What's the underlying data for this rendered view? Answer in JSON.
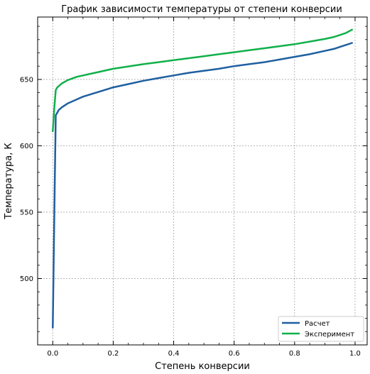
{
  "chart_data": {
    "type": "line",
    "title": "График зависимости температуры от степени конверсии",
    "xlabel": "Степень конверсии",
    "ylabel": "Температура, К",
    "xlim": [
      -0.05,
      1.04
    ],
    "ylim": [
      450,
      697
    ],
    "x_ticks": [
      0.0,
      0.2,
      0.4,
      0.6,
      0.8,
      1.0
    ],
    "x_tick_labels": [
      "0.0",
      "0.2",
      "0.4",
      "0.6",
      "0.8",
      "1.0"
    ],
    "y_ticks": [
      500,
      550,
      600,
      650
    ],
    "y_tick_labels": [
      "500",
      "550",
      "600",
      "650"
    ],
    "grid": true,
    "legend_position": "bottom-right",
    "series": [
      {
        "name": "Расчет",
        "color": "#1f5fa0",
        "x": [
          0.0,
          0.005,
          0.01,
          0.015,
          0.02,
          0.03,
          0.05,
          0.08,
          0.1,
          0.15,
          0.2,
          0.25,
          0.3,
          0.35,
          0.4,
          0.45,
          0.5,
          0.55,
          0.6,
          0.65,
          0.7,
          0.75,
          0.8,
          0.85,
          0.9,
          0.93,
          0.95,
          0.97,
          0.99
        ],
        "y": [
          463,
          545,
          623,
          625,
          627,
          629,
          632,
          635,
          637,
          640.5,
          644,
          646.5,
          649,
          651,
          653,
          655,
          656.5,
          658,
          660,
          661.5,
          663,
          665,
          667,
          669,
          671.5,
          673,
          674.5,
          676,
          677.5
        ]
      },
      {
        "name": "Эксперимент",
        "color": "#11b04a",
        "x": [
          0.0,
          0.005,
          0.01,
          0.015,
          0.02,
          0.03,
          0.05,
          0.08,
          0.1,
          0.15,
          0.2,
          0.25,
          0.3,
          0.35,
          0.4,
          0.45,
          0.5,
          0.55,
          0.6,
          0.65,
          0.7,
          0.75,
          0.8,
          0.85,
          0.9,
          0.93,
          0.95,
          0.97,
          0.99
        ],
        "y": [
          611,
          628,
          642,
          644,
          645,
          647,
          649.5,
          652,
          653,
          655.5,
          658,
          659.8,
          661.5,
          663,
          664.5,
          666,
          667.5,
          669,
          670.5,
          672,
          673.5,
          675,
          676.5,
          678.5,
          680.5,
          682,
          683.5,
          685,
          687.5
        ]
      }
    ]
  }
}
